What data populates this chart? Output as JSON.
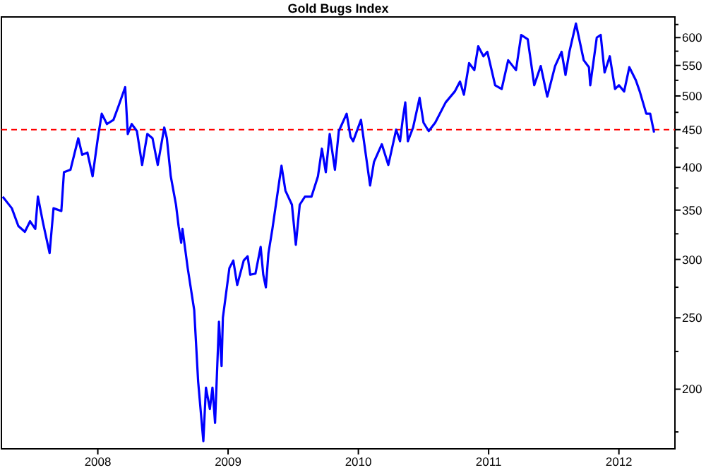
{
  "chart_data": {
    "type": "line",
    "title": "Gold Bugs Index",
    "log": "y",
    "grid": false,
    "line_style": "solid",
    "xlim": [
      2007.26,
      2012.43
    ],
    "xticks": [
      2008,
      2009,
      2010,
      2011,
      2012
    ],
    "ylim": [
      166,
      640
    ],
    "yticks": [
      {
        "value": 175,
        "label": null
      },
      200,
      {
        "value": 225,
        "label": null
      },
      250,
      {
        "value": 275,
        "label": null
      },
      300,
      {
        "value": 325,
        "label": null
      },
      350,
      {
        "value": 375,
        "label": null
      },
      400,
      {
        "value": 425,
        "label": null
      },
      450,
      {
        "value": 475,
        "label": null
      },
      500,
      {
        "value": 525,
        "label": null
      },
      550,
      {
        "value": 575,
        "label": null
      },
      600,
      {
        "value": 625,
        "label": null
      }
    ],
    "ref_lines": [
      {
        "axis": "y",
        "value": 450,
        "color": "#ff0000",
        "line_style": "dashed"
      }
    ],
    "series": [
      {
        "color": "#0000ff",
        "x": [
          2007.27,
          2007.34,
          2007.39,
          2007.44,
          2007.48,
          2007.52,
          2007.54,
          2007.58,
          2007.63,
          2007.66,
          2007.72,
          2007.74,
          2007.79,
          2007.85,
          2007.88,
          2007.92,
          2007.96,
          2008.0,
          2008.03,
          2008.07,
          2008.12,
          2008.16,
          2008.21,
          2008.23,
          2008.26,
          2008.3,
          2008.34,
          2008.38,
          2008.42,
          2008.46,
          2008.51,
          2008.53,
          2008.56,
          2008.6,
          2008.62,
          2008.64,
          2008.65,
          2008.69,
          2008.74,
          2008.77,
          2008.81,
          2008.83,
          2008.86,
          2008.88,
          2008.9,
          2008.93,
          2008.95,
          2008.96,
          2009.01,
          2009.04,
          2009.07,
          2009.12,
          2009.15,
          2009.17,
          2009.21,
          2009.25,
          2009.27,
          2009.29,
          2009.31,
          2009.34,
          2009.41,
          2009.44,
          2009.49,
          2009.52,
          2009.55,
          2009.59,
          2009.64,
          2009.69,
          2009.72,
          2009.75,
          2009.78,
          2009.82,
          2009.85,
          2009.91,
          2009.94,
          2009.96,
          2010.02,
          2010.09,
          2010.12,
          2010.18,
          2010.23,
          2010.29,
          2010.32,
          2010.34,
          2010.36,
          2010.38,
          2010.42,
          2010.47,
          2010.5,
          2010.54,
          2010.59,
          2010.67,
          2010.74,
          2010.78,
          2010.81,
          2010.85,
          2010.89,
          2010.92,
          2010.96,
          2010.99,
          2011.05,
          2011.1,
          2011.15,
          2011.21,
          2011.25,
          2011.3,
          2011.35,
          2011.4,
          2011.45,
          2011.51,
          2011.56,
          2011.59,
          2011.62,
          2011.67,
          2011.73,
          2011.77,
          2011.78,
          2011.83,
          2011.86,
          2011.89,
          2011.93,
          2011.97,
          2012.0,
          2012.04,
          2012.08,
          2012.13,
          2012.16,
          2012.21,
          2012.24,
          2012.27
        ],
        "values": [
          365,
          352,
          333,
          327,
          338,
          330,
          365,
          336,
          306,
          352,
          349,
          394,
          397,
          438,
          416,
          419,
          389,
          438,
          473,
          458,
          464,
          485,
          514,
          444,
          458,
          448,
          403,
          444,
          438,
          403,
          453,
          438,
          389,
          356,
          333,
          316,
          330,
          292,
          256,
          205,
          170,
          201,
          188,
          201,
          180,
          247,
          215,
          250,
          292,
          299,
          277,
          299,
          303,
          286,
          287,
          312,
          286,
          275,
          306,
          330,
          402,
          372,
          356,
          314,
          356,
          365,
          365,
          389,
          424,
          394,
          444,
          397,
          448,
          473,
          440,
          434,
          464,
          378,
          407,
          430,
          403,
          450,
          434,
          464,
          490,
          434,
          453,
          497,
          460,
          448,
          460,
          490,
          507,
          523,
          502,
          554,
          542,
          584,
          566,
          574,
          517,
          511,
          559,
          542,
          605,
          597,
          517,
          549,
          499,
          549,
          574,
          534,
          574,
          627,
          559,
          547,
          517,
          600,
          605,
          538,
          566,
          511,
          517,
          507,
          547,
          525,
          507,
          473,
          473,
          446
        ]
      }
    ]
  }
}
